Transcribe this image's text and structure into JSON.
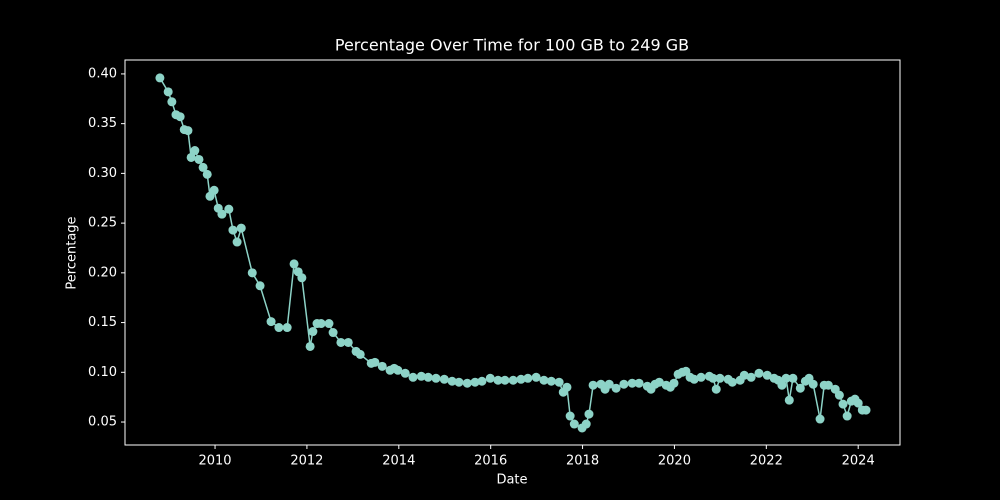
{
  "chart_data": {
    "type": "line",
    "title": "Percentage Over Time for 100 GB to 249 GB",
    "x_label": "Date",
    "y_label": "Percentage",
    "color": "#8dd3c7",
    "xlim": [
      2008.04,
      2024.91
    ],
    "ylim": [
      0.0269,
      0.414
    ],
    "xticks": [
      2010,
      2012,
      2014,
      2016,
      2018,
      2020,
      2022,
      2024
    ],
    "yticks": [
      {
        "value": 0.05,
        "label": "0.05"
      },
      {
        "value": 0.1,
        "label": "0.10"
      },
      0.15,
      {
        "value": 0.2,
        "label": "0.20"
      },
      0.25,
      {
        "value": 0.3,
        "label": "0.30"
      },
      0.35,
      {
        "value": 0.4,
        "label": "0.40"
      }
    ],
    "x": [
      2008.8,
      2008.98,
      2009.06,
      2009.15,
      2009.24,
      2009.33,
      2009.41,
      2009.48,
      2009.56,
      2009.65,
      2009.74,
      2009.83,
      2009.89,
      2009.98,
      2010.07,
      2010.15,
      2010.3,
      2010.39,
      2010.48,
      2010.57,
      2010.81,
      2010.98,
      2011.22,
      2011.39,
      2011.57,
      2011.72,
      2011.81,
      2011.89,
      2012.07,
      2012.13,
      2012.22,
      2012.31,
      2012.48,
      2012.57,
      2012.74,
      2012.9,
      2013.07,
      2013.16,
      2013.4,
      2013.48,
      2013.64,
      2013.81,
      2013.9,
      2013.98,
      2014.14,
      2014.31,
      2014.49,
      2014.64,
      2014.81,
      2014.99,
      2015.16,
      2015.31,
      2015.49,
      2015.66,
      2015.81,
      2015.99,
      2016.16,
      2016.31,
      2016.49,
      2016.66,
      2016.81,
      2016.99,
      2017.16,
      2017.32,
      2017.49,
      2017.58,
      2017.66,
      2017.73,
      2017.82,
      2017.99,
      2018.08,
      2018.14,
      2018.23,
      2018.4,
      2018.49,
      2018.58,
      2018.73,
      2018.9,
      2019.08,
      2019.23,
      2019.41,
      2019.49,
      2019.58,
      2019.67,
      2019.82,
      2019.91,
      2019.99,
      2020.08,
      2020.17,
      2020.25,
      2020.34,
      2020.43,
      2020.58,
      2020.76,
      2020.84,
      2020.91,
      2020.99,
      2021.17,
      2021.26,
      2021.43,
      2021.52,
      2021.67,
      2021.84,
      2022.02,
      2022.17,
      2022.26,
      2022.34,
      2022.43,
      2022.5,
      2022.58,
      2022.74,
      2022.85,
      2022.93,
      2023.02,
      2023.17,
      2023.26,
      2023.35,
      2023.5,
      2023.59,
      2023.67,
      2023.76,
      2023.85,
      2023.93,
      2024.0,
      2024.09,
      2024.17
    ],
    "values": [
      0.396,
      0.382,
      0.372,
      0.359,
      0.357,
      0.344,
      0.343,
      0.316,
      0.323,
      0.314,
      0.306,
      0.299,
      0.277,
      0.283,
      0.265,
      0.259,
      0.264,
      0.243,
      0.231,
      0.245,
      0.2,
      0.187,
      0.151,
      0.145,
      0.145,
      0.209,
      0.201,
      0.195,
      0.126,
      0.141,
      0.149,
      0.149,
      0.149,
      0.14,
      0.13,
      0.13,
      0.121,
      0.118,
      0.109,
      0.11,
      0.106,
      0.102,
      0.104,
      0.102,
      0.099,
      0.095,
      0.096,
      0.095,
      0.094,
      0.093,
      0.091,
      0.09,
      0.089,
      0.09,
      0.091,
      0.094,
      0.092,
      0.092,
      0.092,
      0.093,
      0.094,
      0.095,
      0.092,
      0.091,
      0.09,
      0.08,
      0.085,
      0.056,
      0.048,
      0.044,
      0.048,
      0.058,
      0.087,
      0.088,
      0.083,
      0.088,
      0.084,
      0.088,
      0.089,
      0.089,
      0.086,
      0.083,
      0.088,
      0.09,
      0.087,
      0.085,
      0.089,
      0.098,
      0.1,
      0.101,
      0.095,
      0.093,
      0.095,
      0.096,
      0.094,
      0.083,
      0.094,
      0.093,
      0.09,
      0.092,
      0.097,
      0.095,
      0.099,
      0.097,
      0.094,
      0.092,
      0.087,
      0.094,
      0.072,
      0.094,
      0.084,
      0.091,
      0.094,
      0.088,
      0.053,
      0.087,
      0.087,
      0.083,
      0.077,
      0.068,
      0.056,
      0.071,
      0.073,
      0.069,
      0.062,
      0.062
    ]
  }
}
